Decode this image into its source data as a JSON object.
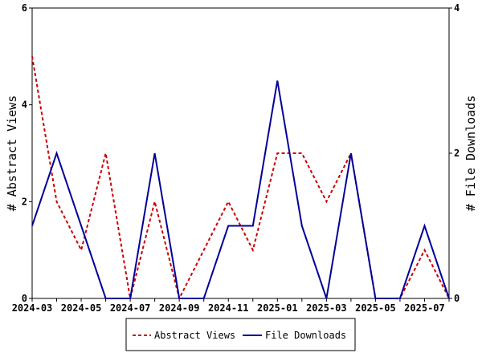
{
  "chart_data": {
    "type": "line",
    "x": [
      "2024-03",
      "2024-04",
      "2024-05",
      "2024-06",
      "2024-07",
      "2024-08",
      "2024-09",
      "2024-10",
      "2024-11",
      "2024-12",
      "2025-01",
      "2025-02",
      "2025-03",
      "2025-04",
      "2025-05",
      "2025-06",
      "2025-07",
      "2025-08"
    ],
    "x_tick_labels": [
      "2024-03",
      "2024-05",
      "2024-07",
      "2024-09",
      "2024-11",
      "2025-01",
      "2025-03",
      "2025-05",
      "2025-07"
    ],
    "series": [
      {
        "name": "Abstract Views",
        "axis": "left",
        "color": "#cc0000",
        "style": "dashed",
        "values": [
          5,
          2,
          1,
          3,
          0,
          2,
          0,
          1,
          2,
          1,
          3,
          3,
          2,
          3,
          0,
          0,
          1,
          0
        ]
      },
      {
        "name": "File Downloads",
        "axis": "right",
        "color": "#000099",
        "style": "solid",
        "values": [
          1,
          2,
          1,
          0,
          0,
          2,
          0,
          0,
          1,
          1,
          3,
          1,
          0,
          2,
          0,
          0,
          1,
          0
        ]
      }
    ],
    "left_axis": {
      "label": "# Abstract Views",
      "ylim": [
        0,
        6
      ],
      "ticks": [
        "0",
        "2",
        "4",
        "6"
      ]
    },
    "right_axis": {
      "label": "# File Downloads",
      "ylim": [
        0,
        4
      ],
      "ticks": [
        "0",
        "2",
        "4"
      ]
    },
    "legend": {
      "placement": "bottom-center",
      "entries": [
        "Abstract Views",
        "File Downloads"
      ]
    }
  }
}
